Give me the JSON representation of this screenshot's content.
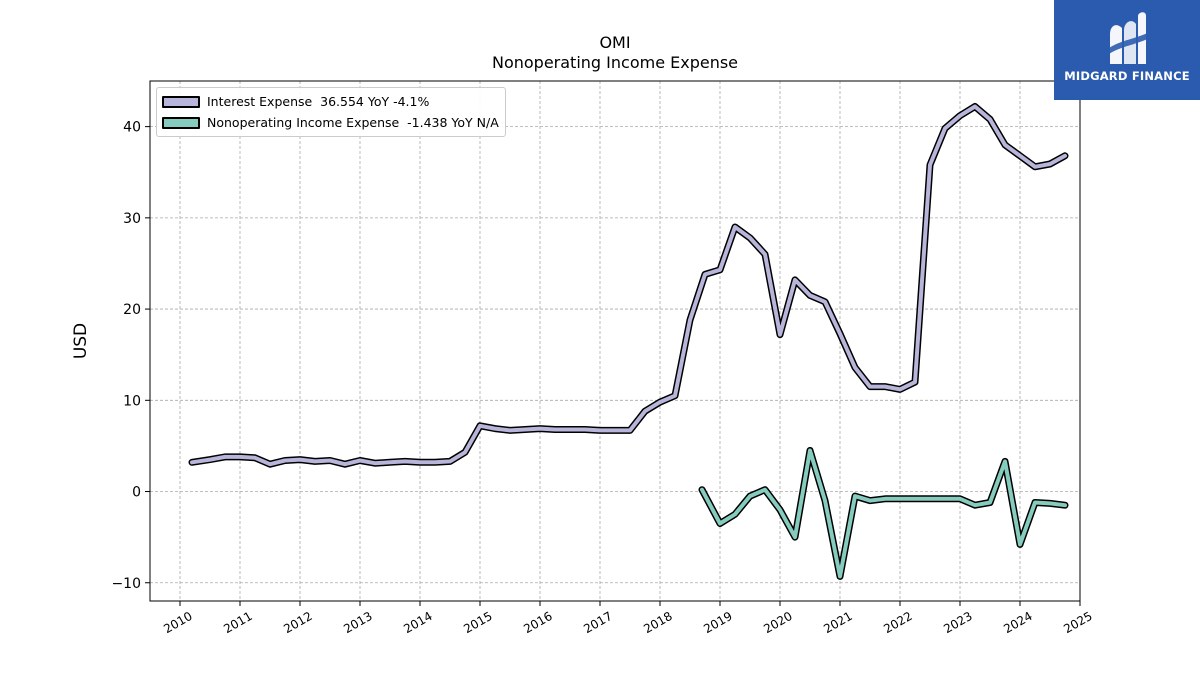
{
  "title": "OMI",
  "subtitle": "Nonoperating Income Expense",
  "logo": {
    "name": "MIDGARD FINANCE",
    "color": "#2b5bae"
  },
  "legend": [
    {
      "label": "Interest Expense  36.554 YoY -4.1%",
      "color": "#b8b5da"
    },
    {
      "label": "Nonoperating Income Expense  -1.438 YoY N/A",
      "color": "#85ccbe"
    }
  ],
  "chart_data": {
    "type": "line",
    "title": "OMI",
    "subtitle": "Nonoperating Income Expense",
    "xlabel": "",
    "ylabel": "USD",
    "xlim": [
      2009.5,
      2025.0
    ],
    "ylim": [
      -12,
      45
    ],
    "x_ticks": [
      "2010",
      "2011",
      "2012",
      "2013",
      "2014",
      "2015",
      "2016",
      "2017",
      "2018",
      "2019",
      "2020",
      "2021",
      "2022",
      "2023",
      "2024",
      "2025"
    ],
    "y_ticks": [
      -10,
      0,
      10,
      20,
      30,
      40
    ],
    "y_tick_labels": [
      "−10",
      "0",
      "10",
      "20",
      "30",
      "40"
    ],
    "grid": true,
    "legend_position": "top-left",
    "series": [
      {
        "name": "Interest Expense",
        "color": "#b8b5da",
        "x": [
          2010.2,
          2010.5,
          2010.75,
          2011.0,
          2011.25,
          2011.5,
          2011.75,
          2012.0,
          2012.25,
          2012.5,
          2012.75,
          2013.0,
          2013.25,
          2013.5,
          2013.75,
          2014.0,
          2014.25,
          2014.5,
          2014.75,
          2015.0,
          2015.25,
          2015.5,
          2015.75,
          2016.0,
          2016.25,
          2016.5,
          2016.75,
          2017.0,
          2017.25,
          2017.5,
          2017.75,
          2018.0,
          2018.25,
          2018.5,
          2018.75,
          2019.0,
          2019.25,
          2019.5,
          2019.75,
          2020.0,
          2020.25,
          2020.5,
          2020.75,
          2021.0,
          2021.25,
          2021.5,
          2021.75,
          2022.0,
          2022.25,
          2022.5,
          2022.75,
          2023.0,
          2023.25,
          2023.5,
          2023.75,
          2024.0,
          2024.25,
          2024.5,
          2024.75
        ],
        "y": [
          3.2,
          3.5,
          3.8,
          3.8,
          3.7,
          3.0,
          3.4,
          3.5,
          3.3,
          3.4,
          3.0,
          3.4,
          3.1,
          3.2,
          3.3,
          3.2,
          3.2,
          3.3,
          4.3,
          7.2,
          6.9,
          6.7,
          6.8,
          6.9,
          6.8,
          6.8,
          6.8,
          6.7,
          6.7,
          6.7,
          8.8,
          9.8,
          10.5,
          18.8,
          23.8,
          24.3,
          29.0,
          27.8,
          26.0,
          17.2,
          23.2,
          21.5,
          20.8,
          17.3,
          13.6,
          11.5,
          11.5,
          11.2,
          12.0,
          35.8,
          39.8,
          41.2,
          42.2,
          40.8,
          38.0,
          36.8,
          35.6,
          35.9,
          36.8
        ]
      },
      {
        "name": "Nonoperating Income Expense",
        "color": "#85ccbe",
        "x": [
          2018.7,
          2019.0,
          2019.25,
          2019.5,
          2019.75,
          2020.0,
          2020.25,
          2020.5,
          2020.75,
          2021.0,
          2021.25,
          2021.5,
          2021.75,
          2022.0,
          2022.25,
          2022.5,
          2022.75,
          2023.0,
          2023.25,
          2023.5,
          2023.75,
          2024.0,
          2024.25,
          2024.5,
          2024.75
        ],
        "y": [
          0.2,
          -3.5,
          -2.5,
          -0.5,
          0.2,
          -2.0,
          -5.0,
          4.5,
          -1.0,
          -9.3,
          -0.5,
          -1.0,
          -0.8,
          -0.8,
          -0.8,
          -0.8,
          -0.8,
          -0.8,
          -1.5,
          -1.2,
          3.3,
          -5.8,
          -1.2,
          -1.3,
          -1.5
        ]
      }
    ]
  }
}
